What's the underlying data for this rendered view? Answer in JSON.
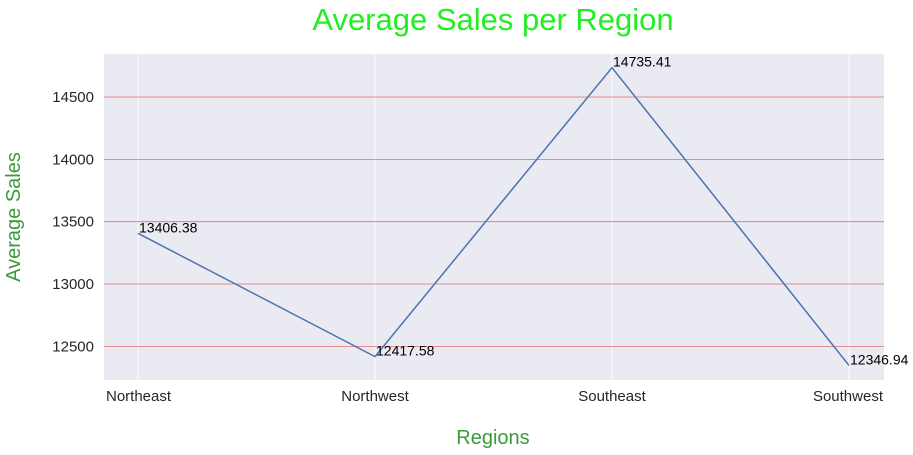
{
  "chart_data": {
    "type": "line",
    "title": "Average Sales per Region",
    "xlabel": "Regions",
    "ylabel": "Average Sales",
    "categories": [
      "Northeast",
      "Northwest",
      "Southeast",
      "Southwest"
    ],
    "series": [
      {
        "values": [
          13406.38,
          12417.58,
          14735.41,
          12346.94
        ]
      }
    ],
    "data_labels": [
      "13406.38",
      "12417.58",
      "14735.41",
      "12346.94"
    ],
    "yticks": [
      12500,
      13000,
      13500,
      14000,
      14500
    ],
    "ytick_labels": [
      "12500",
      "13000",
      "13500",
      "14000",
      "14500"
    ],
    "ylim": [
      12230,
      14845
    ],
    "grid": true,
    "colors": {
      "title": "#22ee22",
      "axis_label": "#3a9a3a",
      "line": "#4c72b0",
      "plot_background": "#eaeaf2",
      "horizontal_grid": "#e07070",
      "vertical_grid": "#ffffff"
    }
  }
}
